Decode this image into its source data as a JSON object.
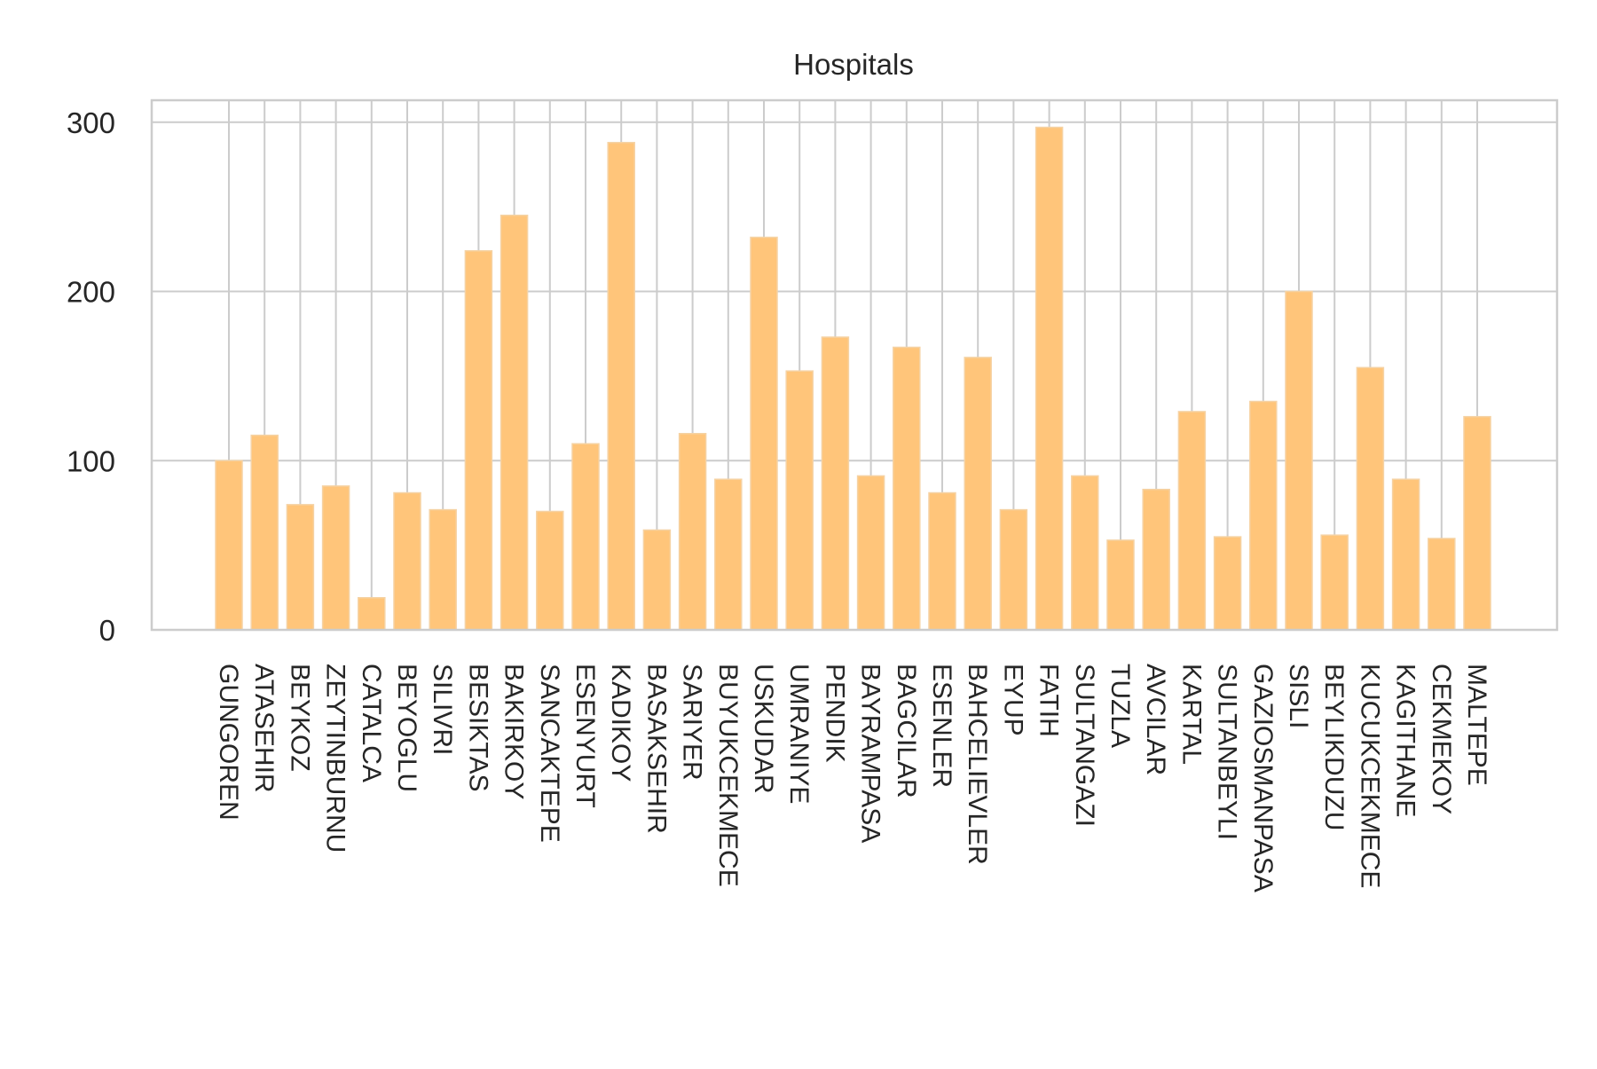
{
  "chart_data": {
    "type": "bar",
    "title": "Hospitals",
    "xlabel": "",
    "ylabel": "",
    "ylim": [
      0,
      313
    ],
    "yticks": [
      0,
      100,
      200,
      300
    ],
    "grid": true,
    "bar_color": "#ffc57a",
    "bar_edge_color": "#f5d2a3",
    "grid_color": "#cccccc",
    "categories": [
      "GUNGOREN",
      "ATASEHIR",
      "BEYKOZ",
      "ZEYTINBURNU",
      "CATALCA",
      "BEYOGLU",
      "SILIVRI",
      "BESIKTAS",
      "BAKIRKOY",
      "SANCAKTEPE",
      "ESENYURT",
      "KADIKOY",
      "BASAKSEHIR",
      "SARIYER",
      "BUYUKCEKMECE",
      "USKUDAR",
      "UMRANIYE",
      "PENDIK",
      "BAYRAMPASA",
      "BAGCILAR",
      "ESENLER",
      "BAHCELIEVLER",
      "EYUP",
      "FATIH",
      "SULTANGAZI",
      "TUZLA",
      "AVCILAR",
      "KARTAL",
      "SULTANBEYLI",
      "GAZIOSMANPASA",
      "SISLI",
      "BEYLIKDUZU",
      "KUCUKCEKMECE",
      "KAGITHANE",
      "CEKMEKOY",
      "MALTEPE"
    ],
    "values": [
      100,
      115,
      74,
      85,
      19,
      81,
      71,
      224,
      245,
      70,
      110,
      288,
      59,
      116,
      89,
      232,
      153,
      173,
      91,
      167,
      81,
      161,
      71,
      297,
      91,
      53,
      83,
      129,
      55,
      135,
      200,
      56,
      155,
      89,
      54,
      126
    ]
  }
}
